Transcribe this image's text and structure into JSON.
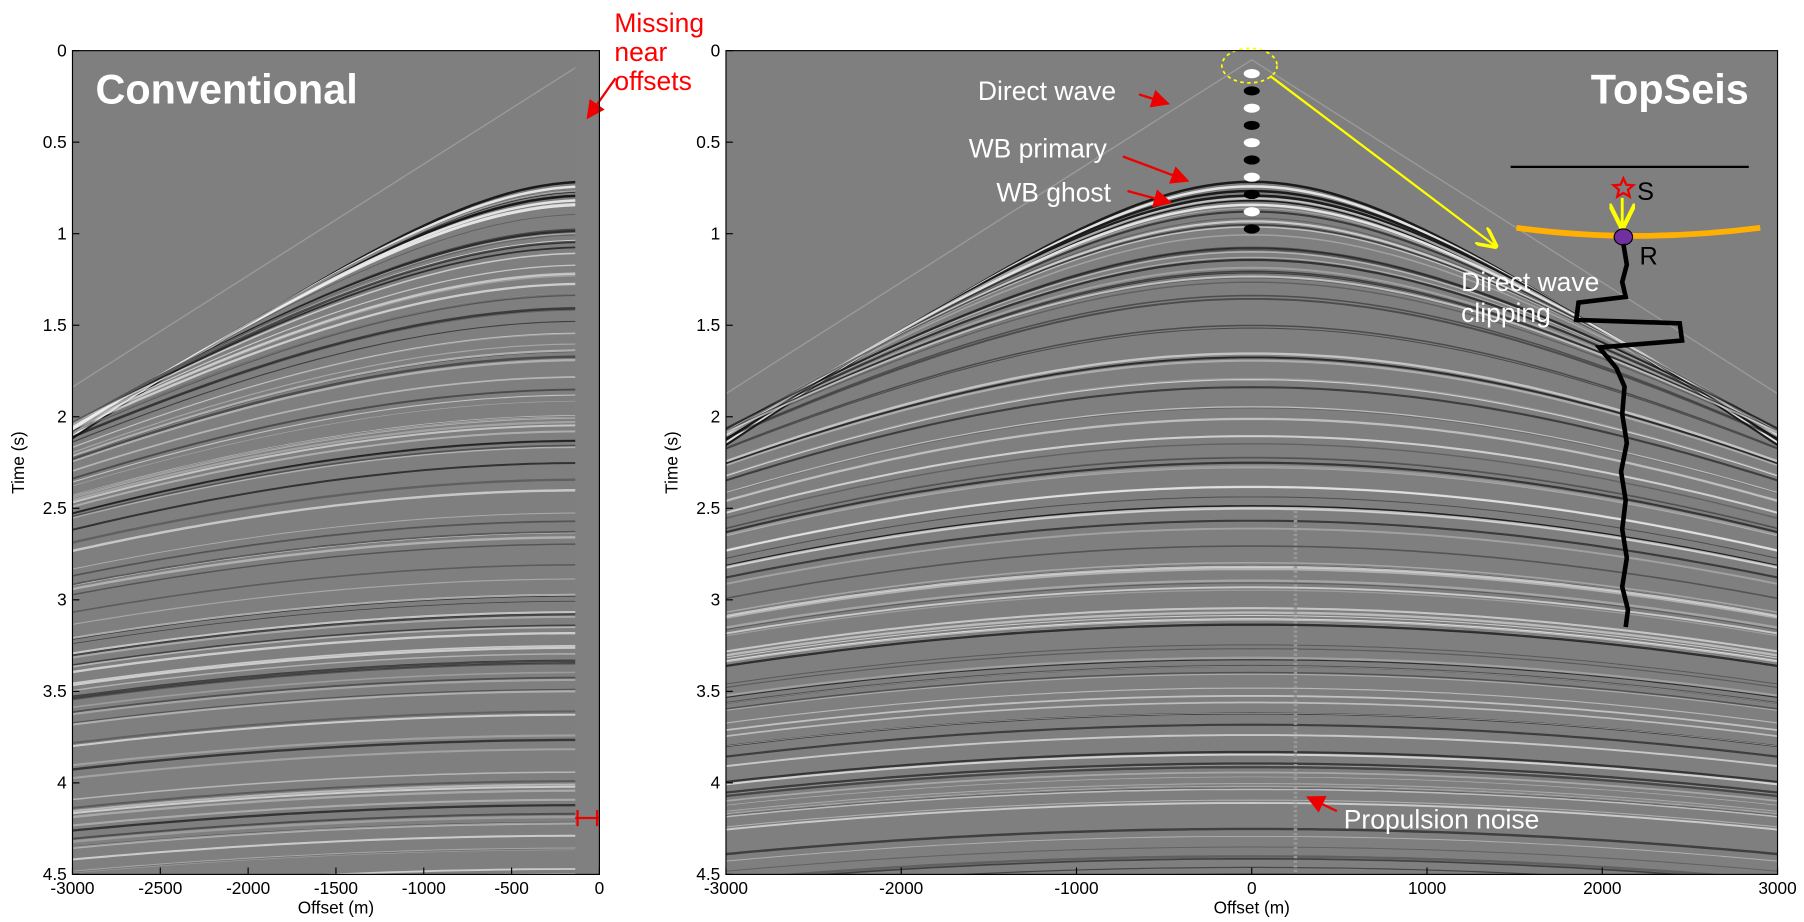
{
  "chart_data": [
    {
      "type": "image",
      "title": "Conventional",
      "xlabel": "Offset (m)",
      "ylabel": "Time (s)",
      "xlim": [
        -3000,
        0
      ],
      "ylim": [
        0,
        4.5
      ],
      "y_inverted": true,
      "xticks": [
        -3000,
        -2500,
        -2000,
        -1500,
        -1000,
        -500,
        0
      ],
      "yticks": [
        0,
        0.5,
        1,
        1.5,
        2,
        2.5,
        3,
        3.5,
        4,
        4.5
      ],
      "annotations": [
        [
          "Missing",
          "near",
          "offsets"
        ]
      ]
    },
    {
      "type": "image",
      "title": "TopSeis",
      "xlabel": "Offset (m)",
      "ylabel": "Time (s)",
      "xlim": [
        -3000,
        3000
      ],
      "ylim": [
        0,
        4.5
      ],
      "y_inverted": true,
      "xticks": [
        -3000,
        -2000,
        -1000,
        0,
        1000,
        2000,
        3000
      ],
      "yticks": [
        0,
        0.5,
        1,
        1.5,
        2,
        2.5,
        3,
        3.5,
        4,
        4.5
      ],
      "annotations": [
        [
          "Direct wave"
        ],
        [
          "WB primary"
        ],
        [
          "WB ghost"
        ],
        [
          "Direct wave",
          "clipping"
        ],
        [
          "Propulsion noise"
        ],
        [
          "S"
        ],
        [
          "R"
        ]
      ]
    }
  ]
}
